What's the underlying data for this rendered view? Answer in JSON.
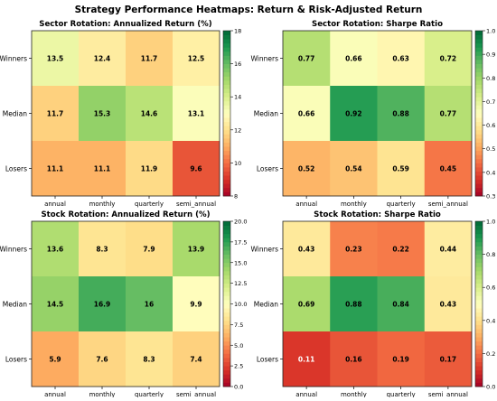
{
  "suptitle": "Strategy Performance Heatmaps: Return & Risk-Adjusted Return",
  "chart_data": [
    {
      "type": "heatmap",
      "title": "Sector Rotation: Annualized Return (%)",
      "x_categories": [
        "annual",
        "monthly",
        "quarterly",
        "semi_annual"
      ],
      "y_categories": [
        "Winners",
        "Median",
        "Losers"
      ],
      "values": [
        [
          13.5,
          12.4,
          11.7,
          12.5
        ],
        [
          11.7,
          15.3,
          14.6,
          13.1
        ],
        [
          11.1,
          11.1,
          11.9,
          9.6
        ]
      ],
      "colormap": "RdYlGn",
      "vmin": 8,
      "vmax": 18,
      "colorbar_ticks": [
        "8",
        "10",
        "12",
        "14",
        "16",
        "18"
      ]
    },
    {
      "type": "heatmap",
      "title": "Sector Rotation: Sharpe Ratio",
      "x_categories": [
        "annual",
        "monthly",
        "quarterly",
        "semi_annual"
      ],
      "y_categories": [
        "Winners",
        "Median",
        "Losers"
      ],
      "values": [
        [
          0.77,
          0.66,
          0.63,
          0.72
        ],
        [
          0.66,
          0.92,
          0.88,
          0.77
        ],
        [
          0.52,
          0.54,
          0.59,
          0.45
        ]
      ],
      "colormap": "RdYlGn",
      "vmin": 0.3,
      "vmax": 1.0,
      "colorbar_ticks": [
        "0.3",
        "0.4",
        "0.5",
        "0.6",
        "0.7",
        "0.8",
        "0.9",
        "1.0"
      ]
    },
    {
      "type": "heatmap",
      "title": "Stock Rotation: Annualized Return (%)",
      "x_categories": [
        "annual",
        "monthly",
        "quarterly",
        "semi_annual"
      ],
      "y_categories": [
        "Winners",
        "Median",
        "Losers"
      ],
      "values": [
        [
          13.6,
          8.3,
          7.9,
          13.9
        ],
        [
          14.5,
          16.9,
          16.0,
          9.9
        ],
        [
          5.9,
          7.6,
          8.3,
          7.4
        ]
      ],
      "colormap": "RdYlGn",
      "vmin": 0.0,
      "vmax": 20.0,
      "colorbar_ticks": [
        "0.0",
        "2.5",
        "5.0",
        "7.5",
        "10.0",
        "12.5",
        "15.0",
        "17.5",
        "20.0"
      ]
    },
    {
      "type": "heatmap",
      "title": "Stock Rotation: Sharpe Ratio",
      "x_categories": [
        "annual",
        "monthly",
        "quarterly",
        "semi_annual"
      ],
      "y_categories": [
        "Winners",
        "Median",
        "Losers"
      ],
      "values": [
        [
          0.43,
          0.23,
          0.22,
          0.44
        ],
        [
          0.69,
          0.88,
          0.84,
          0.43
        ],
        [
          0.11,
          0.16,
          0.19,
          0.17
        ]
      ],
      "colormap": "RdYlGn",
      "vmin": 0.0,
      "vmax": 1.0,
      "colorbar_ticks": [
        "0.0",
        "0.2",
        "0.4",
        "0.6",
        "0.8",
        "1.0"
      ]
    }
  ]
}
